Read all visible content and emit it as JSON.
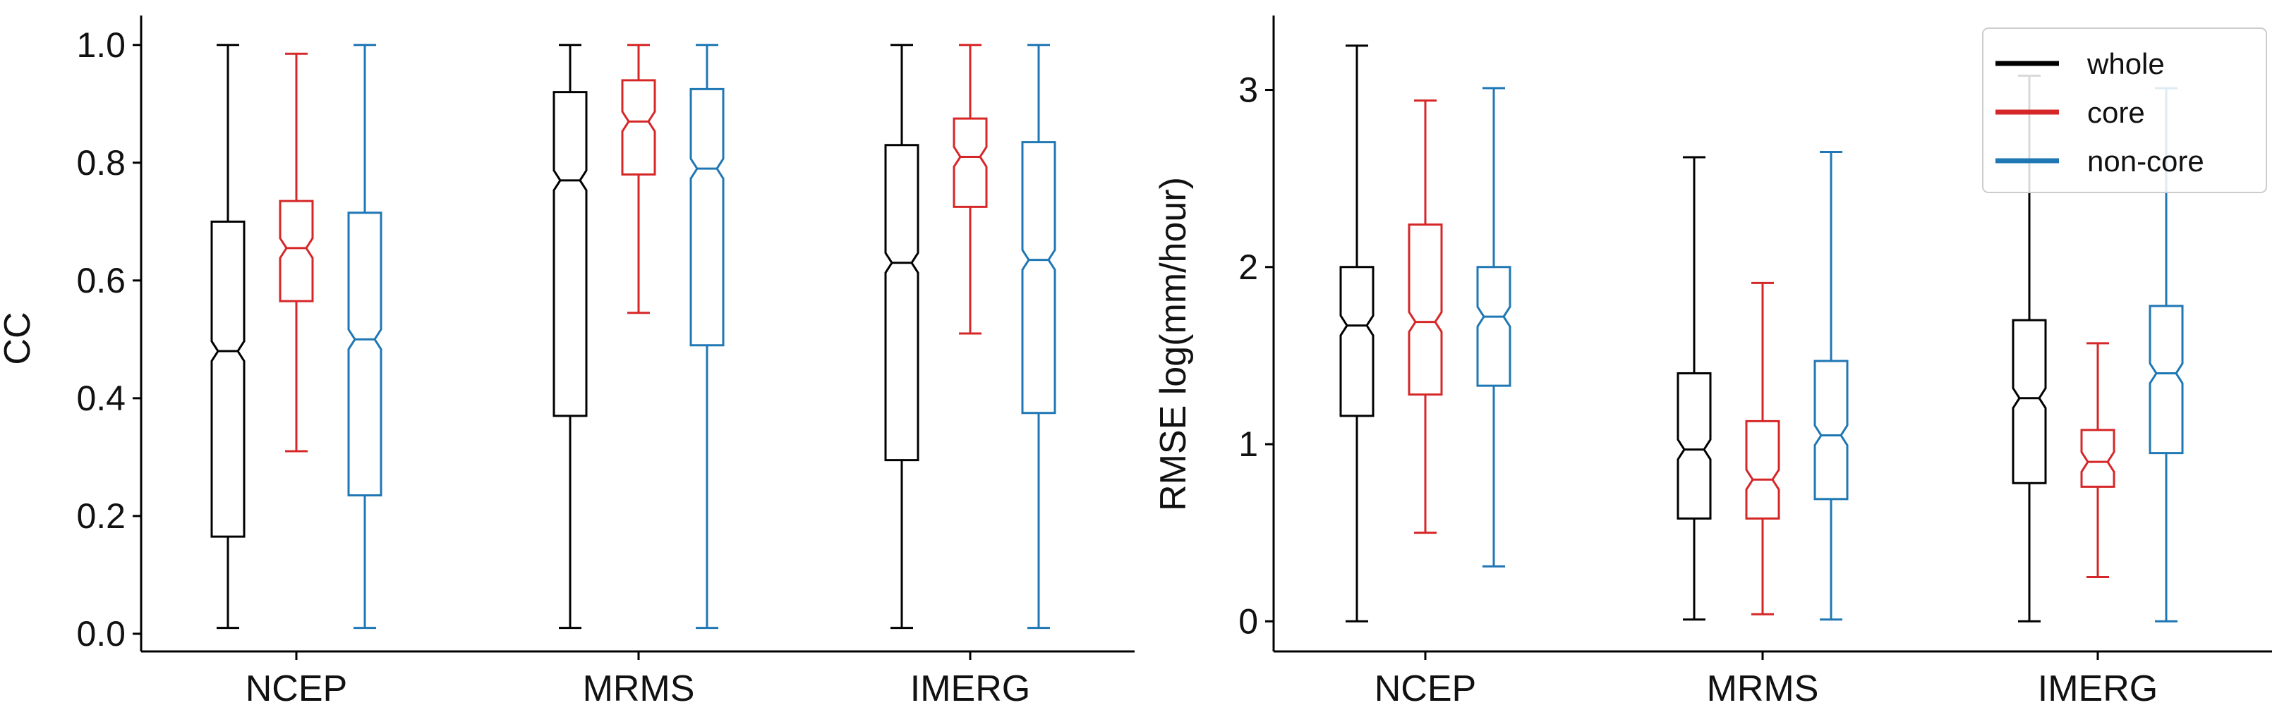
{
  "chart_data": [
    {
      "type": "boxplot",
      "ylabel": "CC",
      "xlabel": "",
      "title": "",
      "ylim": [
        -0.03,
        1.05
      ],
      "yticks": [
        0.0,
        0.2,
        0.4,
        0.6,
        0.8,
        1.0
      ],
      "ytick_labels": [
        "0.0",
        "0.2",
        "0.4",
        "0.6",
        "0.8",
        "1.0"
      ],
      "categories": [
        "NCEP",
        "MRMS",
        "IMERG"
      ],
      "series": [
        {
          "name": "whole",
          "boxes": [
            {
              "whislo": 0.01,
              "q1": 0.165,
              "med": 0.48,
              "q3": 0.7,
              "whishi": 1.0
            },
            {
              "whislo": 0.01,
              "q1": 0.37,
              "med": 0.77,
              "q3": 0.92,
              "whishi": 1.0
            },
            {
              "whislo": 0.01,
              "q1": 0.295,
              "med": 0.63,
              "q3": 0.83,
              "whishi": 1.0
            }
          ]
        },
        {
          "name": "core",
          "boxes": [
            {
              "whislo": 0.31,
              "q1": 0.565,
              "med": 0.655,
              "q3": 0.735,
              "whishi": 0.985
            },
            {
              "whislo": 0.545,
              "q1": 0.78,
              "med": 0.87,
              "q3": 0.94,
              "whishi": 1.0
            },
            {
              "whislo": 0.51,
              "q1": 0.725,
              "med": 0.81,
              "q3": 0.875,
              "whishi": 1.0
            }
          ]
        },
        {
          "name": "non-core",
          "boxes": [
            {
              "whislo": 0.01,
              "q1": 0.235,
              "med": 0.5,
              "q3": 0.715,
              "whishi": 1.0
            },
            {
              "whislo": 0.01,
              "q1": 0.49,
              "med": 0.79,
              "q3": 0.925,
              "whishi": 1.0
            },
            {
              "whislo": 0.01,
              "q1": 0.375,
              "med": 0.635,
              "q3": 0.835,
              "whishi": 1.0
            }
          ]
        }
      ]
    },
    {
      "type": "boxplot",
      "ylabel": "RMSE log(mm/hour)",
      "xlabel": "",
      "title": "",
      "ylim": [
        -0.17,
        3.42
      ],
      "yticks": [
        0,
        1,
        2,
        3
      ],
      "ytick_labels": [
        "0",
        "1",
        "2",
        "3"
      ],
      "categories": [
        "NCEP",
        "MRMS",
        "IMERG"
      ],
      "legend": {
        "position": "top-right",
        "entries": [
          "whole",
          "core",
          "non-core"
        ]
      },
      "series": [
        {
          "name": "whole",
          "boxes": [
            {
              "whislo": 0.0,
              "q1": 1.16,
              "med": 1.67,
              "q3": 2.0,
              "whishi": 3.25
            },
            {
              "whislo": 0.01,
              "q1": 0.58,
              "med": 0.97,
              "q3": 1.4,
              "whishi": 2.62
            },
            {
              "whislo": 0.0,
              "q1": 0.78,
              "med": 1.26,
              "q3": 1.7,
              "whishi": 3.08
            }
          ]
        },
        {
          "name": "core",
          "boxes": [
            {
              "whislo": 0.5,
              "q1": 1.28,
              "med": 1.69,
              "q3": 2.24,
              "whishi": 2.94
            },
            {
              "whislo": 0.04,
              "q1": 0.58,
              "med": 0.8,
              "q3": 1.13,
              "whishi": 1.91
            },
            {
              "whislo": 0.25,
              "q1": 0.76,
              "med": 0.9,
              "q3": 1.08,
              "whishi": 1.57
            }
          ]
        },
        {
          "name": "non-core",
          "boxes": [
            {
              "whislo": 0.31,
              "q1": 1.33,
              "med": 1.72,
              "q3": 2.0,
              "whishi": 3.01
            },
            {
              "whislo": 0.01,
              "q1": 0.69,
              "med": 1.05,
              "q3": 1.47,
              "whishi": 2.65
            },
            {
              "whislo": 0.0,
              "q1": 0.95,
              "med": 1.4,
              "q3": 1.78,
              "whishi": 3.01
            }
          ]
        }
      ]
    }
  ],
  "colors": {
    "whole": "#000000",
    "core": "#d62728",
    "non-core": "#1f77b4"
  }
}
